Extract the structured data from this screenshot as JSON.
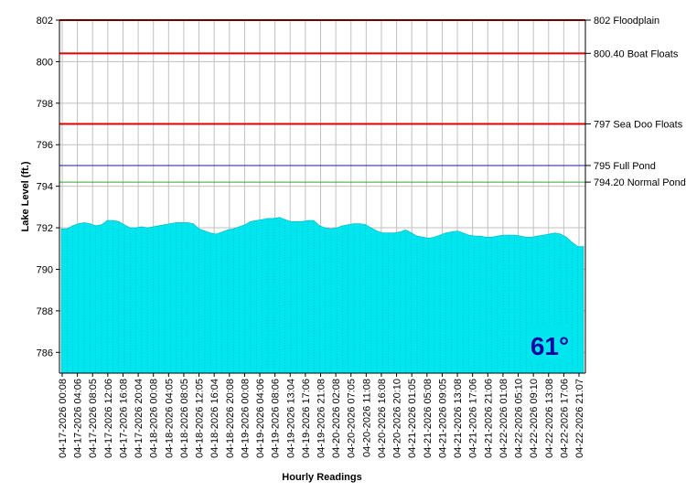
{
  "chart_data": {
    "type": "area",
    "xlabel": "Hourly Readings",
    "ylabel": "Lake Level (ft.)",
    "ylim": [
      785,
      802
    ],
    "y_ticks": [
      786,
      788,
      790,
      792,
      794,
      796,
      798,
      800,
      802
    ],
    "grid": true,
    "fill_color": "#00e5ee",
    "x_tick_labels": [
      "04-17-2026 00:08",
      "04-17-2026 04:06",
      "04-17-2026 08:05",
      "04-17-2026 12:06",
      "04-17-2026 16:08",
      "04-17-2026 20:04",
      "04-18-2026 00:08",
      "04-18-2026 04:05",
      "04-18-2026 08:05",
      "04-18-2026 12:05",
      "04-18-2026 16:04",
      "04-18-2026 20:08",
      "04-19-2026 00:08",
      "04-19-2026 04:06",
      "04-19-2026 08:06",
      "04-19-2026 13:04",
      "04-19-2026 17:06",
      "04-19-2026 21:08",
      "04-20-2026 02:08",
      "04-20-2026 07:05",
      "04-20-2026 11:08",
      "04-20-2026 16:08",
      "04-20-2026 20:10",
      "04-21-2026 01:05",
      "04-21-2026 05:08",
      "04-21-2026 09:05",
      "04-21-2026 13:08",
      "04-21-2026 17:06",
      "04-21-2026 21:06",
      "04-22-2026 01:08",
      "04-22-2026 05:10",
      "04-22-2026 09:10",
      "04-22-2026 13:08",
      "04-22-2026 17:06",
      "04-22-2026 21:07"
    ],
    "values": [
      791.95,
      791.95,
      792.1,
      792.2,
      792.25,
      792.2,
      792.1,
      792.15,
      792.35,
      792.35,
      792.3,
      792.15,
      792.0,
      792.0,
      792.05,
      792.0,
      792.05,
      792.1,
      792.15,
      792.2,
      792.25,
      792.25,
      792.25,
      792.2,
      791.95,
      791.85,
      791.75,
      791.7,
      791.8,
      791.9,
      791.95,
      792.05,
      792.15,
      792.3,
      792.35,
      792.4,
      792.45,
      792.45,
      792.5,
      792.4,
      792.3,
      792.3,
      792.3,
      792.35,
      792.35,
      792.1,
      792.0,
      791.95,
      792.0,
      792.1,
      792.15,
      792.2,
      792.2,
      792.15,
      792.0,
      791.85,
      791.75,
      791.75,
      791.75,
      791.8,
      791.9,
      791.75,
      791.6,
      791.55,
      791.5,
      791.55,
      791.65,
      791.75,
      791.8,
      791.85,
      791.75,
      791.65,
      791.6,
      791.6,
      791.55,
      791.55,
      791.6,
      791.65,
      791.65,
      791.65,
      791.6,
      791.55,
      791.55,
      791.6,
      791.65,
      791.7,
      791.75,
      791.7,
      791.55,
      791.3,
      791.1,
      791.1
    ],
    "reference_lines": [
      {
        "value": 802,
        "label": "802 Floodplain",
        "color": "#e00000",
        "width": 2
      },
      {
        "value": 800.4,
        "label": "800.40 Boat Floats",
        "color": "#e00000",
        "width": 2
      },
      {
        "value": 797,
        "label": "797 Sea Doo Floats",
        "color": "#e00000",
        "width": 2
      },
      {
        "value": 795,
        "label": "795 Full Pond",
        "color": "#1a1aa0",
        "width": 1
      },
      {
        "value": 794.2,
        "label": "794.20 Normal Pond",
        "color": "#3aa03a",
        "width": 1
      }
    ],
    "badge": {
      "text": "61°",
      "background": "#00e5ee",
      "color": "#0a0aa0"
    }
  }
}
